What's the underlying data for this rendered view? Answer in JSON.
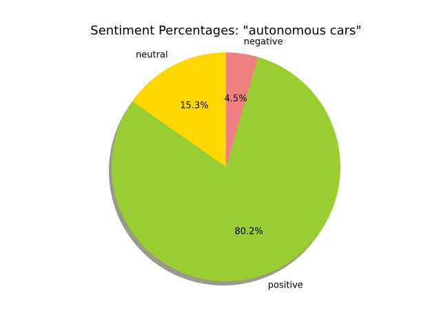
{
  "chart_data": {
    "type": "pie",
    "title": "Sentiment Percentages: \"autonomous cars\"",
    "slices": [
      {
        "label": "negative",
        "value": 4.5,
        "pct_label": "4.5%",
        "color": "#f08080"
      },
      {
        "label": "positive",
        "value": 80.2,
        "pct_label": "80.2%",
        "color": "#9acd32"
      },
      {
        "label": "neutral",
        "value": 15.3,
        "pct_label": "15.3%",
        "color": "#ffd700"
      }
    ],
    "start_angle_deg": 90,
    "shadow": true,
    "legend": "none"
  }
}
